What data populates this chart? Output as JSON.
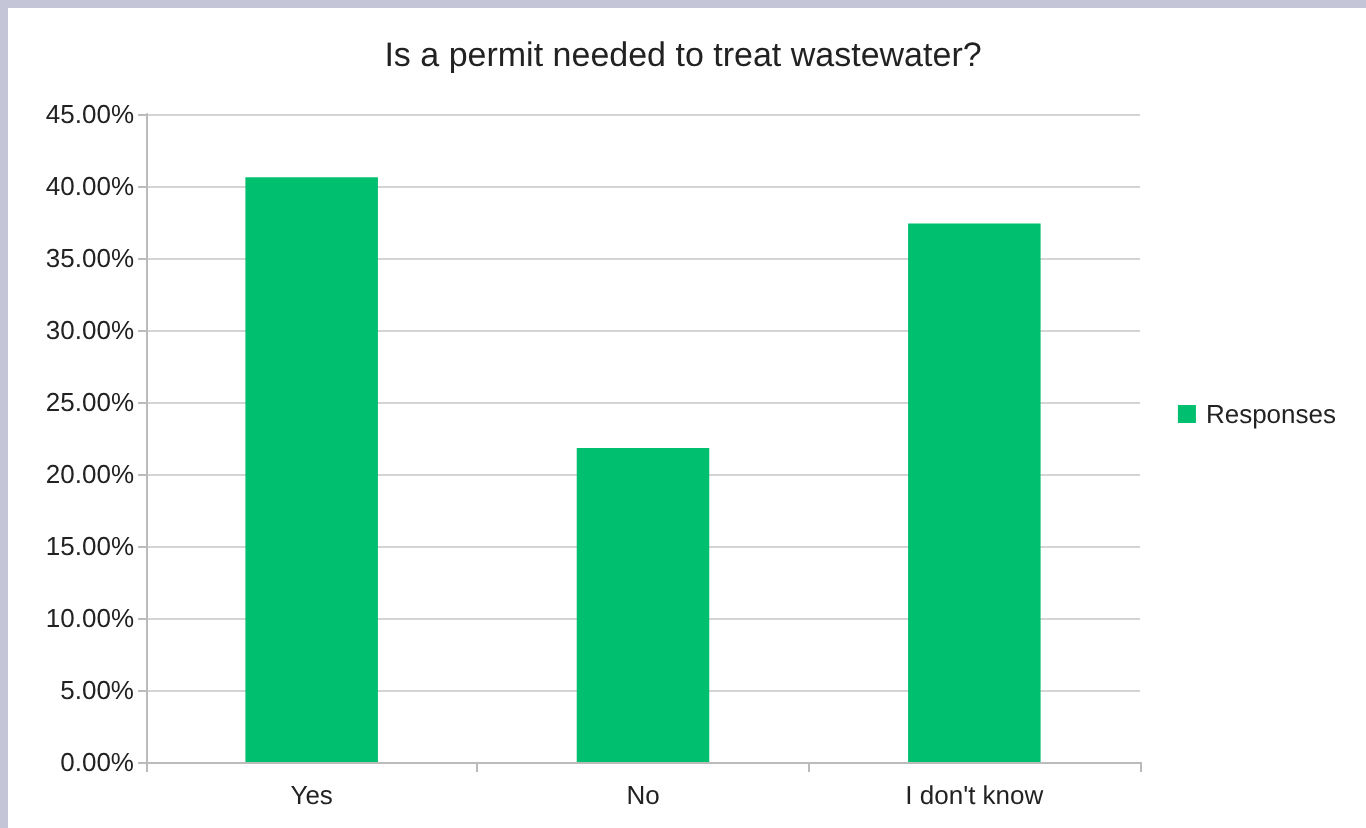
{
  "chart_data": {
    "type": "bar",
    "title": "Is a permit needed to treat wastewater?",
    "categories": [
      "Yes",
      "No",
      "I don't know"
    ],
    "series": [
      {
        "name": "Responses",
        "color": "#00bf6f",
        "values": [
          40.6,
          21.8,
          37.4
        ]
      }
    ],
    "ylim": [
      0,
      45
    ],
    "yticks": [
      {
        "value": 0,
        "label": "0.00%"
      },
      {
        "value": 5,
        "label": "5.00%"
      },
      {
        "value": 10,
        "label": "10.00%"
      },
      {
        "value": 15,
        "label": "15.00%"
      },
      {
        "value": 20,
        "label": "20.00%"
      },
      {
        "value": 25,
        "label": "25.00%"
      },
      {
        "value": 30,
        "label": "30.00%"
      },
      {
        "value": 35,
        "label": "35.00%"
      },
      {
        "value": 40,
        "label": "40.00%"
      },
      {
        "value": 45,
        "label": "45.00%"
      }
    ],
    "grid": "y",
    "legend": "right"
  }
}
